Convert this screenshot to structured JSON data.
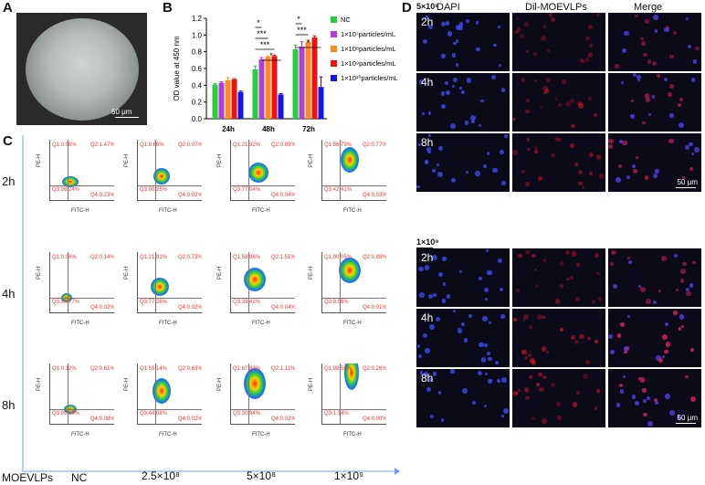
{
  "panels": {
    "a": "A",
    "b": "B",
    "c": "C",
    "d": "D"
  },
  "panel_a": {
    "scale_bar": "50 μm"
  },
  "chart_data": {
    "type": "bar",
    "title": "",
    "ylabel": "OD value at 450 nm",
    "xlabel": "",
    "categories": [
      "24h",
      "48h",
      "72h"
    ],
    "ylim": [
      0,
      1.2
    ],
    "yticks": [
      "0.0",
      "0.2",
      "0.4",
      "0.6",
      "0.8",
      "1.0",
      "1.2"
    ],
    "legend_position": "right",
    "series": [
      {
        "name": "NC",
        "color": "#2ecc40",
        "values": [
          0.41,
          0.59,
          0.83
        ],
        "errors": [
          0.01,
          0.04,
          0.05
        ]
      },
      {
        "name": "1×10⁷particles/mL",
        "color": "#b03fd6",
        "values": [
          0.43,
          0.71,
          0.86
        ],
        "errors": [
          0.01,
          0.02,
          0.06
        ]
      },
      {
        "name": "1×10⁸particles/mL",
        "color": "#ff8a1f",
        "values": [
          0.46,
          0.74,
          0.92
        ],
        "errors": [
          0.03,
          0.01,
          0.02
        ]
      },
      {
        "name": "1×10⁹particles/mL",
        "color": "#ee1111",
        "values": [
          0.47,
          0.75,
          0.97
        ],
        "errors": [
          0.01,
          0.01,
          0.02
        ]
      },
      {
        "name": "1×10¹⁰particles/mL",
        "color": "#1515e6",
        "values": [
          0.32,
          0.29,
          0.38
        ],
        "errors": [
          0.01,
          0.01,
          0.12
        ]
      }
    ],
    "significance": {
      "48h": [
        "*",
        "***",
        "***",
        "*"
      ],
      "72h": [
        "*",
        "***",
        "*"
      ]
    }
  },
  "panel_c": {
    "row_labels": [
      "2h",
      "4h",
      "8h"
    ],
    "x_axis_label": "FITC-H",
    "y_axis_label": "PE-H",
    "bottom_labels": {
      "title": "MOEVLPs",
      "groups": [
        "NC",
        "2.5×10⁸",
        "5×10⁸",
        "1×10⁹"
      ]
    },
    "plots": [
      [
        {
          "q1": "Q1:0.06%",
          "q2": "Q2:1.47%",
          "q3": "Q3:98.24%",
          "q4": "Q4:0.23%"
        },
        {
          "q1": "Q1:9.66%",
          "q2": "Q2:0.07%",
          "q3": "Q3:90.25%",
          "q4": "Q4:0.02%"
        },
        {
          "q1": "Q1:21.92%",
          "q2": "Q2:0.89%",
          "q3": "Q3:77.04%",
          "q4": "Q4:0.04%"
        },
        {
          "q1": "Q1:56.79%",
          "q2": "Q2:0.77%",
          "q3": "Q3:42.41%",
          "q4": "Q4:0.03%"
        }
      ],
      [
        {
          "q1": "Q1:0.06%",
          "q2": "Q2:0.14%",
          "q3": "Q3:99.77%",
          "q4": "Q4:0.02%"
        },
        {
          "q1": "Q1:21.91%",
          "q2": "Q2:0.73%",
          "q3": "Q3:77.26%",
          "q4": "Q4:0.02%"
        },
        {
          "q1": "Q1:58.96%",
          "q2": "Q2:1.51%",
          "q3": "Q3:39.42%",
          "q4": "Q4:0.04%"
        },
        {
          "q1": "Q1:90.05%",
          "q2": "Q2:0.88%",
          "q3": "Q3:9.06%",
          "q4": "Q4:0.01%"
        }
      ],
      [
        {
          "q1": "Q1:0.12%",
          "q2": "Q2:0.61%",
          "q3": "Q3:99.19%",
          "q4": "Q4:0.08%"
        },
        {
          "q1": "Q1:55.14%",
          "q2": "Q2:0.63%",
          "q3": "Q3:44.08%",
          "q4": "Q4:0.02%"
        },
        {
          "q1": "Q1:67.89%",
          "q2": "Q2:1.11%",
          "q3": "Q3:30.94%",
          "q4": "Q4:0.02%"
        },
        {
          "q1": "Q1:98.58%",
          "q2": "Q2:0.26%",
          "q3": "Q3:1.14%",
          "q4": "Q4:0.00%"
        }
      ]
    ]
  },
  "panel_d": {
    "column_headers": [
      "DAPI",
      "Dil-MOEVLPs",
      "Merge"
    ],
    "groups": [
      {
        "label": "5×10⁸",
        "rows": [
          "2h",
          "4h",
          "8h"
        ]
      },
      {
        "label": "1×10⁹",
        "rows": [
          "2h",
          "4h",
          "8h"
        ]
      }
    ],
    "scale_bar": "50 μm"
  }
}
